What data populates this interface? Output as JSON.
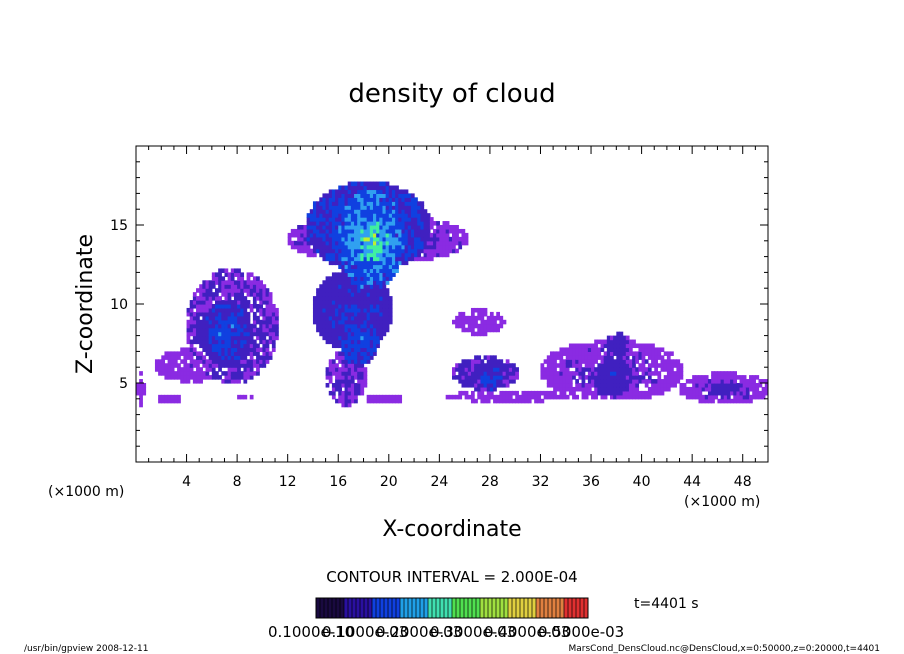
{
  "chart_data": {
    "type": "heatmap",
    "title": "density of cloud",
    "xlabel": "X-coordinate",
    "ylabel": "Z-coordinate",
    "x_unit_left": "(×1000 m)",
    "x_unit_right": "(×1000 m)",
    "xlim": [
      0,
      50
    ],
    "ylim": [
      0,
      20
    ],
    "x_ticks": [
      4,
      8,
      12,
      16,
      20,
      24,
      28,
      32,
      36,
      40,
      44,
      48
    ],
    "y_ticks": [
      5,
      10,
      15
    ],
    "contour_interval_label": "CONTOUR INTERVAL = 2.000E-04",
    "time_label": "t=4401 s",
    "colorbar_labels": [
      "0.1000e-10",
      "0.1000e-03",
      "0.2000e-03",
      "0.3000e-03",
      "0.4000e-03",
      "0.5000e-03"
    ],
    "colorbar_colors": [
      "#1a0a40",
      "#2a10a0",
      "#1040e0",
      "#20a0e8",
      "#40e0b0",
      "#50e050",
      "#a0e040",
      "#e0d040",
      "#e08040",
      "#e03030"
    ],
    "cloud_colors": [
      "#8a2be2",
      "#4020c0",
      "#1040e0",
      "#30a0f0",
      "#40f0a0",
      "#c0f030"
    ],
    "regions": [
      {
        "x0": 0,
        "x1": 0.5,
        "z0": 3.5,
        "z1": 5.5,
        "v": 0.6
      },
      {
        "x0": 1.5,
        "x1": 3.5,
        "z0": 3.6,
        "z1": 4.2,
        "v": 0.5
      },
      {
        "x0": 1.5,
        "x1": 7,
        "z0": 5,
        "z1": 7,
        "v": 0.7
      },
      {
        "x0": 4,
        "x1": 11,
        "z0": 5,
        "z1": 12,
        "v": 1.2
      },
      {
        "x0": 5,
        "x1": 9,
        "z0": 6,
        "z1": 10,
        "v": 2.0
      },
      {
        "x0": 6,
        "x1": 8,
        "z0": 7.5,
        "z1": 9,
        "v": 2.6
      },
      {
        "x0": 8,
        "x1": 11,
        "z0": 8,
        "z1": 9.5,
        "v": 0.8
      },
      {
        "x0": 8,
        "x1": 9,
        "z0": 3.8,
        "z1": 4.2,
        "v": 0.5
      },
      {
        "x0": 12,
        "x1": 26,
        "z0": 12.5,
        "z1": 15.5,
        "v": 1.0
      },
      {
        "x0": 13.5,
        "x1": 23,
        "z0": 12,
        "z1": 17.5,
        "v": 2.2
      },
      {
        "x0": 16,
        "x1": 21,
        "z0": 11,
        "z1": 17,
        "v": 3.2
      },
      {
        "x0": 17,
        "x1": 20,
        "z0": 12.5,
        "z1": 15.5,
        "v": 4.0
      },
      {
        "x0": 14,
        "x1": 20,
        "z0": 7,
        "z1": 12,
        "v": 1.8
      },
      {
        "x0": 16,
        "x1": 19,
        "z0": 6,
        "z1": 9,
        "v": 2.3
      },
      {
        "x0": 15,
        "x1": 18,
        "z0": 3.5,
        "z1": 7,
        "v": 1.1
      },
      {
        "x0": 18,
        "x1": 21,
        "z0": 3.6,
        "z1": 4.2,
        "v": 0.6
      },
      {
        "x0": 25,
        "x1": 29,
        "z0": 8,
        "z1": 9.5,
        "v": 0.5
      },
      {
        "x0": 24.5,
        "x1": 34,
        "z0": 3.7,
        "z1": 4.4,
        "v": 0.6
      },
      {
        "x0": 25,
        "x1": 30,
        "z0": 4.5,
        "z1": 6.5,
        "v": 1.3
      },
      {
        "x0": 27,
        "x1": 29,
        "z0": 4.5,
        "z1": 6,
        "v": 2.1
      },
      {
        "x0": 32,
        "x1": 43,
        "z0": 3.8,
        "z1": 7.5,
        "v": 0.9
      },
      {
        "x0": 36,
        "x1": 39,
        "z0": 4,
        "z1": 6.5,
        "v": 1.5
      },
      {
        "x0": 37,
        "x1": 39,
        "z0": 6.5,
        "z1": 8,
        "v": 1.4
      },
      {
        "x0": 43,
        "x1": 50,
        "z0": 3.6,
        "z1": 5.5,
        "v": 0.9
      },
      {
        "x0": 45,
        "x1": 48,
        "z0": 4,
        "z1": 5,
        "v": 1.4
      }
    ]
  },
  "footer": {
    "left": "/usr/bin/gpview   2008-12-11",
    "right": "MarsCond_DensCloud.nc@DensCloud,x=0:50000,z=0:20000,t=4401"
  }
}
